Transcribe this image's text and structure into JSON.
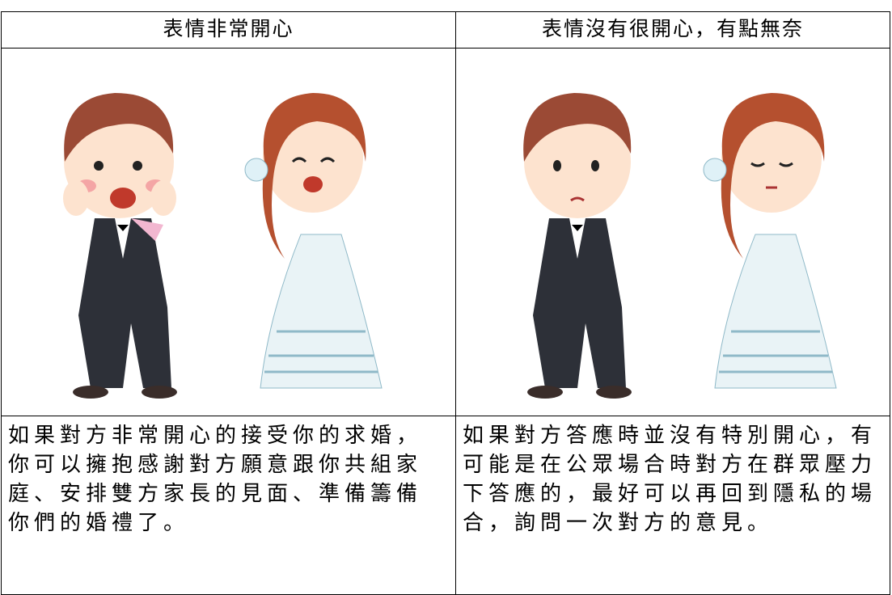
{
  "table": {
    "headers": [
      "表情非常開心",
      "表情沒有很開心，有點無奈"
    ],
    "cells": [
      [
        "如果對方非常開心的接受你的求婚，",
        "你可以擁抱感謝對方願意跟你共組家",
        "庭、安排雙方家長的見面、準備籌備",
        "你們的婚禮了。"
      ],
      [
        "如果對方答應時並沒有特別開心，有",
        "可能是在公眾場合時對方在群眾壓力",
        "下答應的，最好可以再回到隱私的場",
        "合，詢問一次對方的意見。"
      ]
    ]
  }
}
